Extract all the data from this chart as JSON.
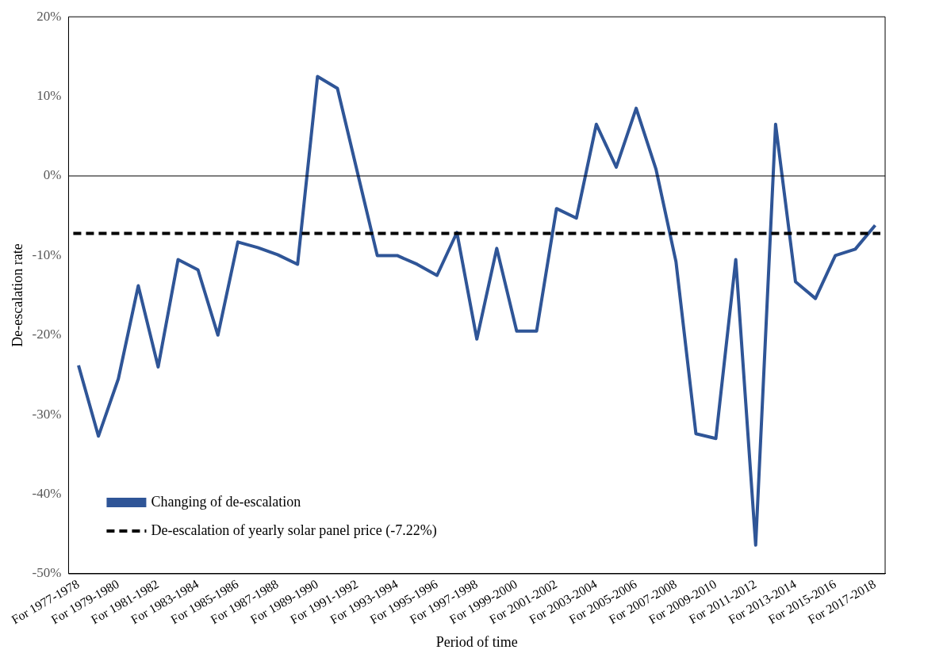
{
  "chart_data": {
    "type": "line",
    "xlabel": "Period of time",
    "ylabel": "De-escalation rate",
    "categories": [
      "For 1977-1978",
      null,
      "For 1979-1980",
      null,
      "For 1981-1982",
      null,
      "For 1983-1984",
      null,
      "For 1985-1986",
      null,
      "For 1987-1988",
      null,
      "For 1989-1990",
      null,
      "For 1991-1992",
      null,
      "For 1993-1994",
      null,
      "For 1995-1996",
      null,
      "For 1997-1998",
      null,
      "For 1999-2000",
      null,
      "For 2001-2002",
      null,
      "For 2003-2004",
      null,
      "For 2005-2006",
      null,
      "For 2007-2008",
      null,
      "For 2009-2010",
      null,
      "For 2011-2012",
      null,
      "For 2013-2014",
      null,
      "For 2015-2016",
      null,
      "For 2017-2018"
    ],
    "series": [
      {
        "name": "Changing of de-escalation",
        "color": "#2f5597",
        "values": [
          -23.8,
          -32.7,
          -25.5,
          -13.8,
          -24.0,
          -10.5,
          -11.8,
          -20.0,
          -8.3,
          -9.0,
          -9.9,
          -11.1,
          12.5,
          11.0,
          0.5,
          -10.0,
          -10.0,
          -11.1,
          -12.5,
          -7.1,
          -20.5,
          -9.1,
          -19.5,
          -19.5,
          -4.1,
          -5.3,
          6.5,
          1.1,
          8.5,
          0.8,
          -10.8,
          -32.4,
          -33.0,
          -10.5,
          -46.4,
          6.5,
          -13.3,
          -15.4,
          -10.0,
          -9.2,
          -6.2
        ]
      }
    ],
    "ylim": [
      -50,
      20
    ],
    "yticks": [
      {
        "value": -50,
        "label": "-50%"
      },
      {
        "value": -40,
        "label": "-40%"
      },
      {
        "value": -30,
        "label": "-30%"
      },
      {
        "value": -20,
        "label": "-20%"
      },
      {
        "value": -10,
        "label": "-10%"
      },
      {
        "value": 0,
        "label": "0%"
      },
      {
        "value": 10,
        "label": "10%"
      },
      {
        "value": 20,
        "label": "20%"
      }
    ],
    "ref_lines": [
      {
        "axis": "y",
        "value": 0,
        "color": "#000000",
        "line_style": "solid"
      },
      {
        "axis": "y",
        "value": -7.22,
        "label": "De-escalation of yearly solar panel price (-7.22%)",
        "color": "#000000",
        "line_style": "dashed"
      }
    ],
    "legend": "bottom left",
    "grid": false,
    "marker": "none",
    "line_style": "solid"
  }
}
